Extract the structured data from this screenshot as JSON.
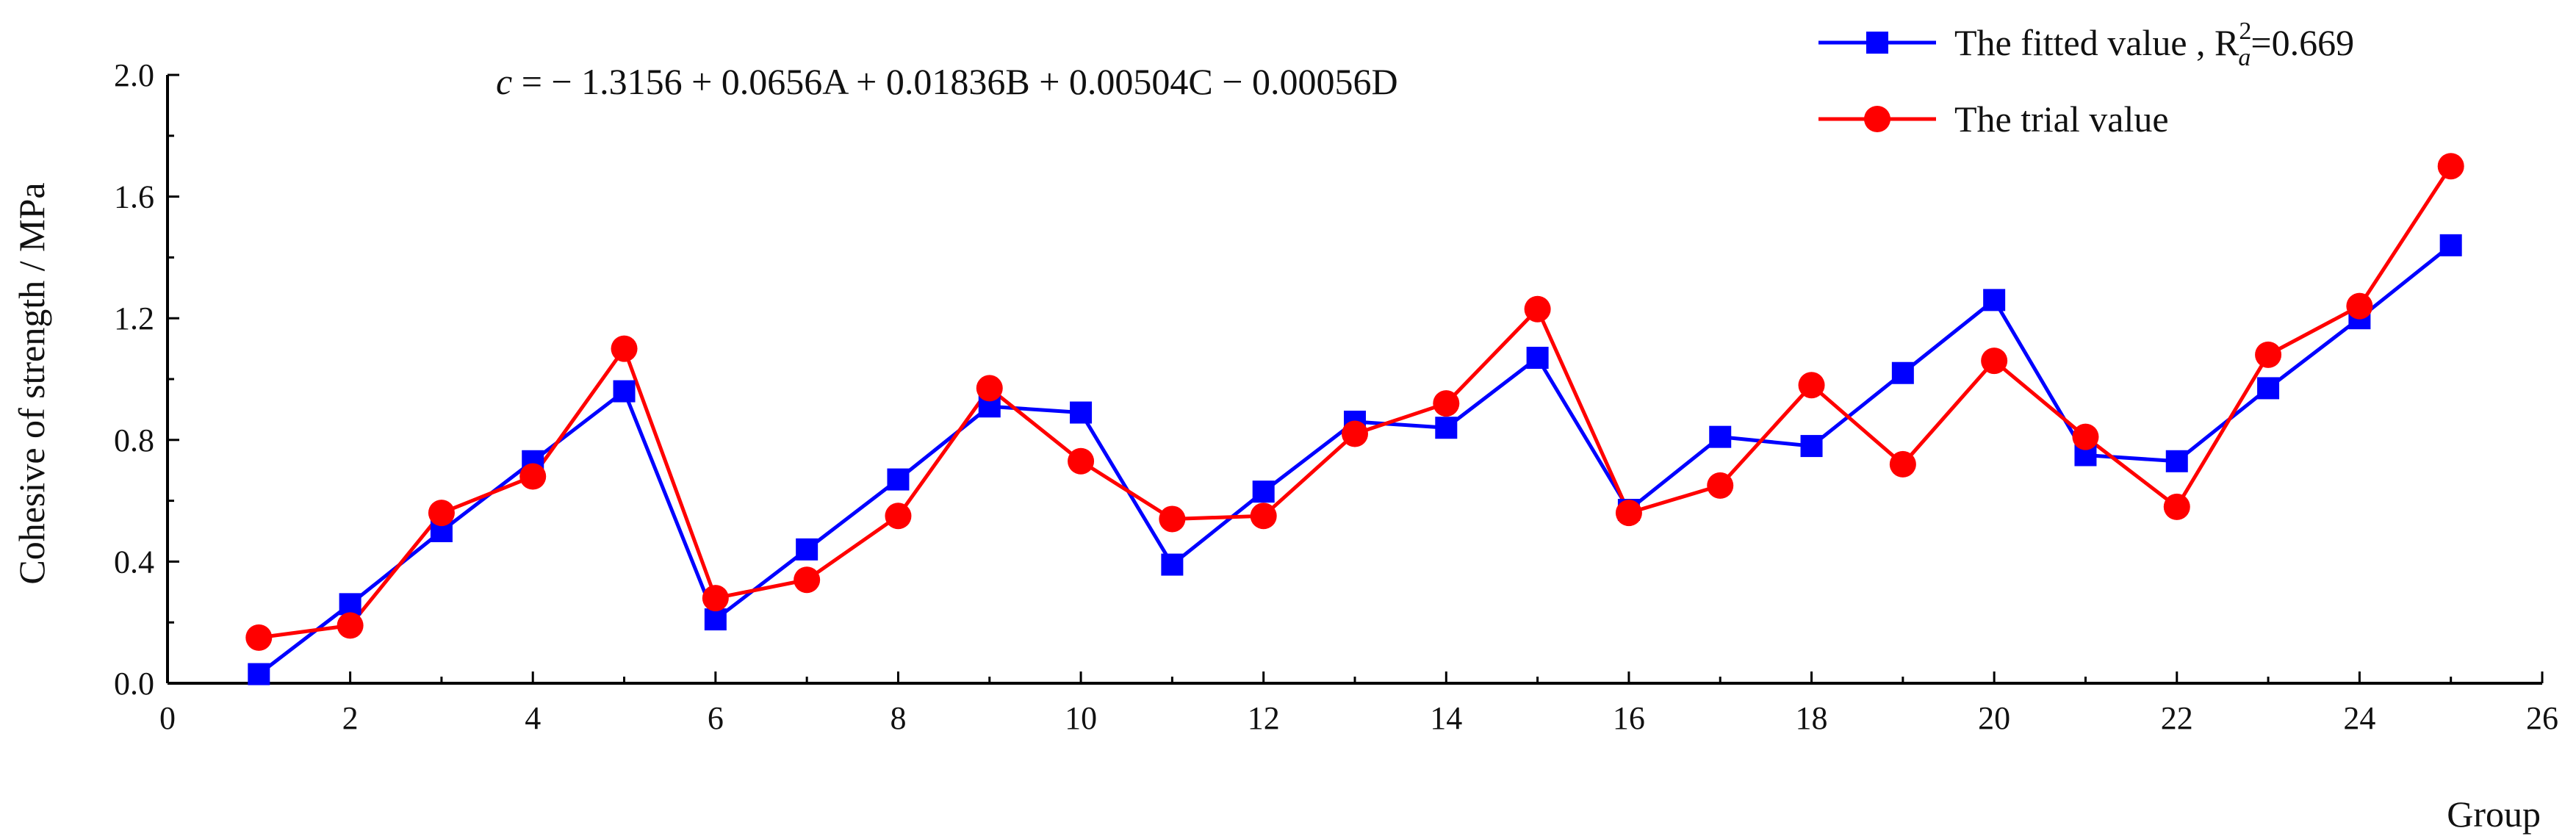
{
  "chart_data": {
    "type": "line",
    "title": "",
    "xlabel": "Group",
    "ylabel": "Cohesive of strength / MPa",
    "equation": "c = − 1.3156 + 0.0656A + 0.01836B + 0.00504C − 0.00056D",
    "xlim": [
      0,
      26
    ],
    "ylim": [
      0.0,
      2.0
    ],
    "xticks": [
      "0",
      "2",
      "4",
      "6",
      "8",
      "10",
      "12",
      "14",
      "16",
      "18",
      "20",
      "22",
      "24",
      "26"
    ],
    "yticks": [
      "0.0",
      "0.4",
      "0.8",
      "1.2",
      "1.6",
      "2.0"
    ],
    "grid": false,
    "legend_position": "top-right",
    "x": [
      1,
      2,
      3,
      4,
      5,
      6,
      7,
      8,
      9,
      10,
      11,
      12,
      13,
      14,
      15,
      16,
      17,
      18,
      19,
      20,
      21,
      22,
      23,
      24,
      25
    ],
    "series": [
      {
        "name": "The fitted value , R",
        "name_sup": "2",
        "name_sub": "a",
        "name_suffix": "=0.669",
        "color": "#0000ff",
        "marker": "square",
        "values": [
          0.03,
          0.26,
          0.5,
          0.73,
          0.96,
          0.21,
          0.44,
          0.67,
          0.91,
          0.89,
          0.39,
          0.63,
          0.86,
          0.84,
          1.07,
          0.57,
          0.81,
          0.78,
          1.02,
          1.26,
          0.75,
          0.73,
          0.97,
          1.2,
          1.44
        ]
      },
      {
        "name": "The trial value",
        "color": "#ff0000",
        "marker": "circle",
        "values": [
          0.15,
          0.19,
          0.56,
          0.68,
          1.1,
          0.28,
          0.34,
          0.55,
          0.97,
          0.73,
          0.54,
          0.55,
          0.82,
          0.92,
          1.23,
          0.56,
          0.65,
          0.98,
          0.72,
          1.06,
          0.81,
          0.58,
          1.08,
          1.24,
          1.7
        ]
      }
    ]
  }
}
